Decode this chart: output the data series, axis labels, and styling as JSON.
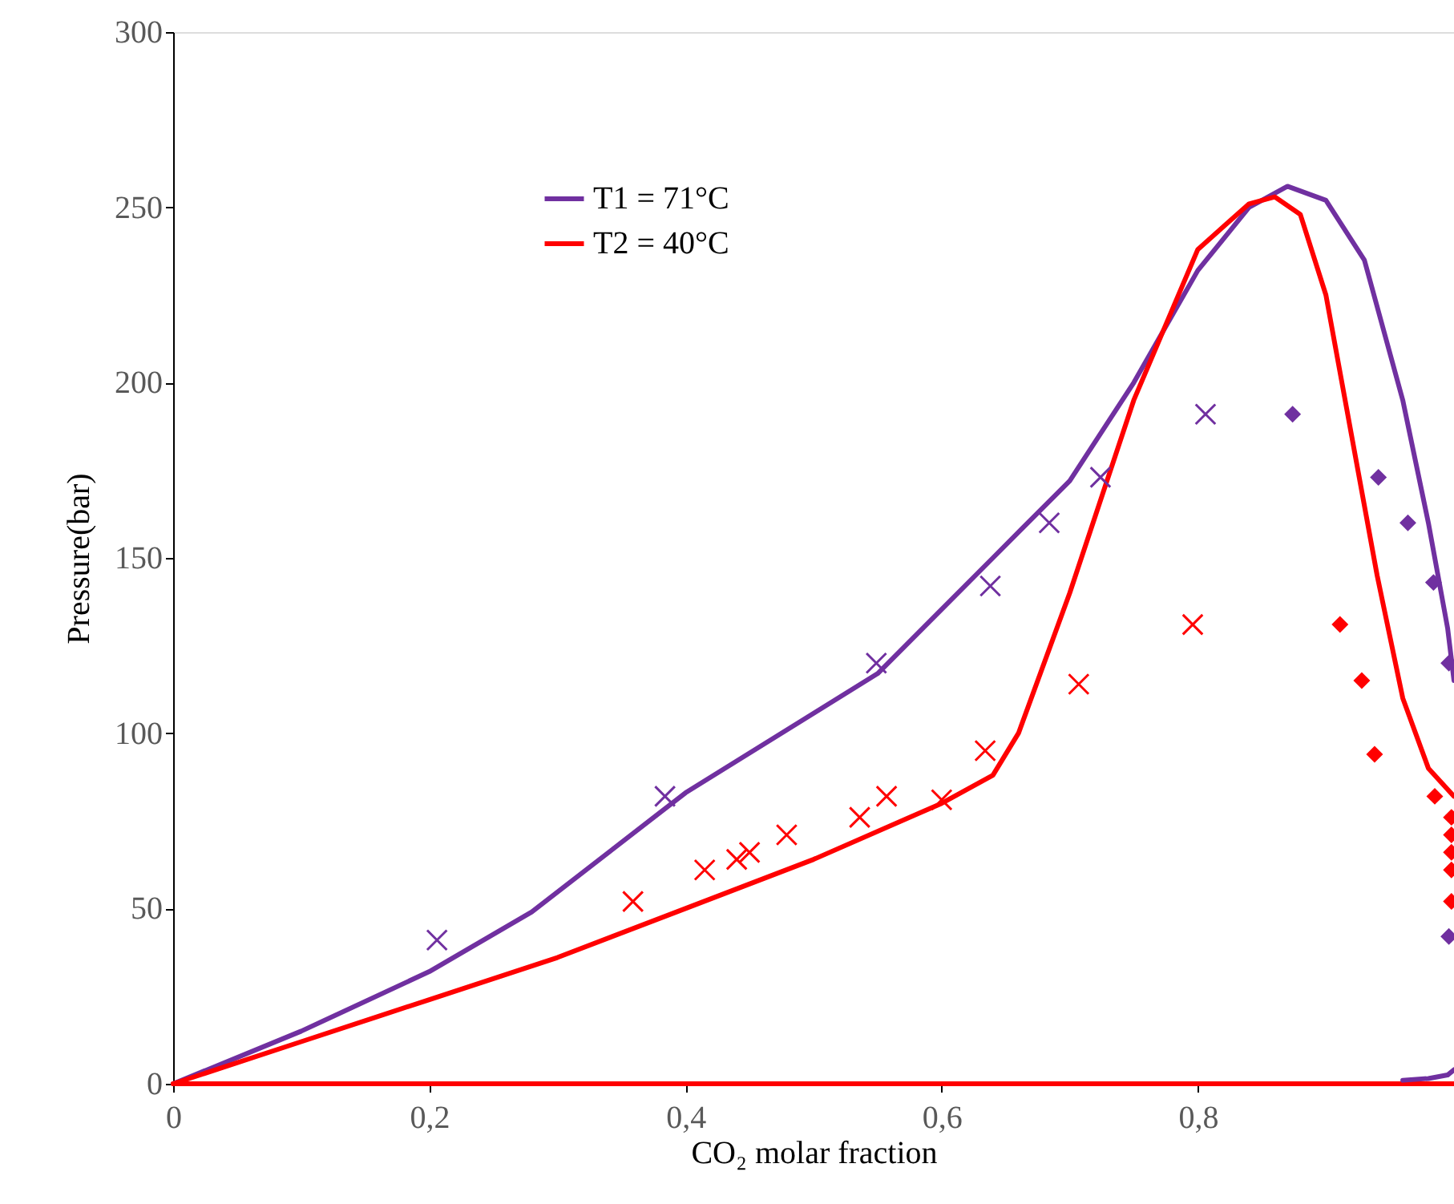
{
  "chart_data": {
    "type": "line",
    "xlabel": "CO₂ molar fraction",
    "ylabel": "Pressure(bar)",
    "xlim": [
      0,
      1
    ],
    "xticks": [
      {
        "value": 0,
        "label": "0"
      },
      {
        "value": 0.2,
        "label": "0,2"
      },
      {
        "value": 0.4,
        "label": "0,4"
      },
      {
        "value": 0.6,
        "label": "0,6"
      },
      {
        "value": 0.8,
        "label": "0,8"
      }
    ],
    "ylim": [
      0,
      300
    ],
    "yticks": [
      0,
      50,
      100,
      150,
      200,
      250,
      300
    ],
    "grid": false,
    "legend": "top left",
    "series": [
      {
        "name": "T1 = 71°C",
        "type": "line",
        "color": "#7030a0",
        "x": [
          0,
          0.1,
          0.2,
          0.28,
          0.4,
          0.55,
          0.64,
          0.7,
          0.75,
          0.8,
          0.84,
          0.87,
          0.9,
          0.93,
          0.96,
          0.98,
          0.995,
          1.0
        ],
        "values": [
          0,
          15,
          32,
          49,
          83,
          117,
          150,
          172,
          200,
          232,
          250,
          256,
          252,
          235,
          195,
          160,
          130,
          115
        ]
      },
      {
        "name": "T2 = 40°C",
        "type": "line",
        "color": "#ff0000",
        "x": [
          0,
          0.1,
          0.2,
          0.3,
          0.4,
          0.5,
          0.6,
          0.64,
          0.66,
          0.7,
          0.75,
          0.8,
          0.84,
          0.86,
          0.88,
          0.9,
          0.92,
          0.94,
          0.96,
          0.98,
          1.0
        ],
        "values": [
          0,
          12,
          24,
          36,
          50,
          64,
          80,
          88,
          100,
          140,
          195,
          238,
          251,
          253,
          248,
          225,
          185,
          145,
          110,
          90,
          82
        ]
      },
      {
        "type": "line",
        "color": "#ff0000",
        "x": [
          0,
          1.0
        ],
        "values": [
          0,
          0
        ]
      },
      {
        "type": "line",
        "color": "#7030a0",
        "x": [
          0.96,
          0.98,
          0.995,
          1.0
        ],
        "values": [
          1,
          1.5,
          2.5,
          4
        ]
      },
      {
        "type": "scatter",
        "marker": "cross",
        "color": "#7030a0",
        "x": [
          0.206,
          0.384,
          0.549,
          0.638,
          0.684,
          0.724,
          0.806
        ],
        "values": [
          41,
          82,
          120,
          142,
          160,
          173,
          191
        ]
      },
      {
        "type": "scatter",
        "marker": "cross",
        "color": "#ff0000",
        "x": [
          0.359,
          0.415,
          0.44,
          0.45,
          0.479,
          0.536,
          0.557,
          0.6,
          0.634,
          0.707,
          0.796
        ],
        "values": [
          52,
          61,
          64,
          66,
          71,
          76,
          82,
          81,
          95,
          114,
          131
        ]
      },
      {
        "type": "scatter",
        "marker": "diamond",
        "color": "#7030a0",
        "x": [
          0.874,
          0.941,
          0.964,
          0.984,
          0.996,
          0.996
        ],
        "values": [
          191,
          173,
          160,
          143,
          120,
          42
        ]
      },
      {
        "type": "scatter",
        "marker": "diamond",
        "color": "#ff0000",
        "x": [
          0.911,
          0.928,
          0.938,
          0.985,
          0.998,
          0.998,
          0.998,
          0.998,
          0.998
        ],
        "values": [
          131,
          115,
          94,
          82,
          76,
          71,
          66,
          61,
          52
        ]
      }
    ]
  }
}
